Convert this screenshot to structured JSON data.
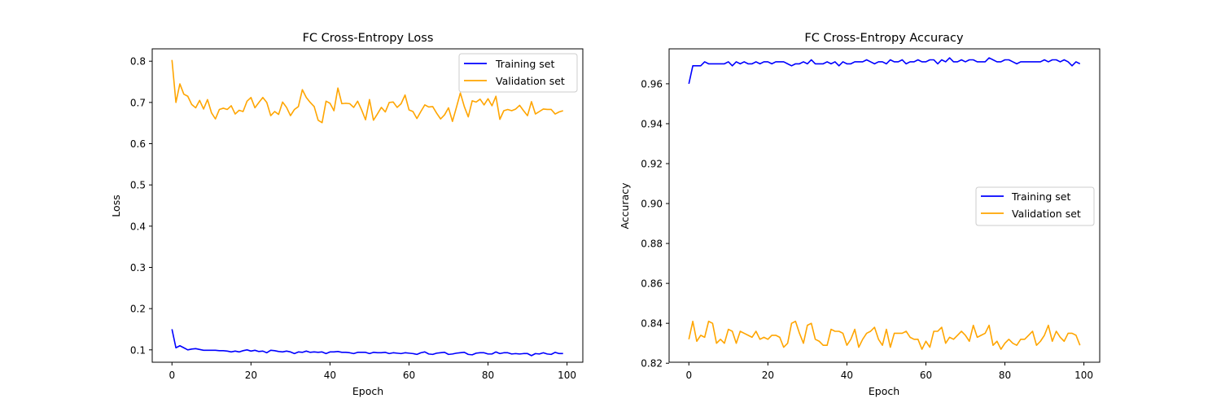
{
  "chart_data": [
    {
      "type": "line",
      "title": "FC Cross-Entropy Loss",
      "xlabel": "Epoch",
      "ylabel": "Loss",
      "xlim": [
        -5,
        104
      ],
      "ylim": [
        0.07,
        0.83
      ],
      "xticks": [
        0,
        20,
        40,
        60,
        80,
        100
      ],
      "yticks": [
        0.1,
        0.2,
        0.3,
        0.4,
        0.5,
        0.6,
        0.7,
        0.8
      ],
      "xtick_labels": [
        "0",
        "20",
        "40",
        "60",
        "80",
        "100"
      ],
      "ytick_labels": [
        "0.1",
        "0.2",
        "0.3",
        "0.4",
        "0.5",
        "0.6",
        "0.7",
        "0.8"
      ],
      "grid": false,
      "legend": "upper-right",
      "series": [
        {
          "name": "Training set",
          "color": "#0000ff",
          "values": [
            0.15,
            0.105,
            0.11,
            0.105,
            0.1,
            0.102,
            0.103,
            0.101,
            0.099,
            0.099,
            0.099,
            0.099,
            0.098,
            0.098,
            0.097,
            0.095,
            0.097,
            0.095,
            0.098,
            0.1,
            0.097,
            0.099,
            0.096,
            0.097,
            0.093,
            0.099,
            0.098,
            0.096,
            0.095,
            0.097,
            0.095,
            0.091,
            0.095,
            0.094,
            0.097,
            0.094,
            0.095,
            0.094,
            0.095,
            0.091,
            0.095,
            0.095,
            0.096,
            0.094,
            0.094,
            0.093,
            0.091,
            0.094,
            0.094,
            0.094,
            0.091,
            0.094,
            0.093,
            0.093,
            0.094,
            0.091,
            0.093,
            0.092,
            0.091,
            0.093,
            0.092,
            0.091,
            0.089,
            0.093,
            0.095,
            0.09,
            0.089,
            0.092,
            0.093,
            0.094,
            0.089,
            0.09,
            0.092,
            0.093,
            0.094,
            0.089,
            0.088,
            0.092,
            0.093,
            0.093,
            0.09,
            0.09,
            0.095,
            0.091,
            0.093,
            0.093,
            0.09,
            0.091,
            0.09,
            0.091,
            0.091,
            0.086,
            0.091,
            0.09,
            0.093,
            0.09,
            0.089,
            0.094,
            0.091,
            0.091
          ]
        },
        {
          "name": "Validation set",
          "color": "#ffa500",
          "values": [
            0.803,
            0.7,
            0.745,
            0.72,
            0.715,
            0.695,
            0.687,
            0.705,
            0.684,
            0.707,
            0.675,
            0.66,
            0.683,
            0.686,
            0.683,
            0.692,
            0.672,
            0.681,
            0.678,
            0.703,
            0.712,
            0.687,
            0.7,
            0.712,
            0.7,
            0.668,
            0.678,
            0.671,
            0.701,
            0.688,
            0.668,
            0.683,
            0.69,
            0.731,
            0.712,
            0.7,
            0.69,
            0.657,
            0.651,
            0.703,
            0.698,
            0.68,
            0.735,
            0.697,
            0.698,
            0.697,
            0.688,
            0.703,
            0.682,
            0.658,
            0.707,
            0.657,
            0.672,
            0.688,
            0.677,
            0.7,
            0.701,
            0.688,
            0.697,
            0.718,
            0.682,
            0.678,
            0.661,
            0.678,
            0.694,
            0.689,
            0.69,
            0.674,
            0.66,
            0.67,
            0.687,
            0.654,
            0.688,
            0.723,
            0.69,
            0.665,
            0.704,
            0.701,
            0.708,
            0.694,
            0.709,
            0.692,
            0.715,
            0.659,
            0.68,
            0.683,
            0.68,
            0.684,
            0.693,
            0.68,
            0.668,
            0.702,
            0.672,
            0.678,
            0.684,
            0.683,
            0.683,
            0.672,
            0.677,
            0.68
          ]
        }
      ]
    },
    {
      "type": "line",
      "title": "FC Cross-Entropy Accuracy",
      "xlabel": "Epoch",
      "ylabel": "Accuracy",
      "xlim": [
        -5,
        104
      ],
      "ylim": [
        0.8205,
        0.9775
      ],
      "xticks": [
        0,
        20,
        40,
        60,
        80,
        100
      ],
      "yticks": [
        0.82,
        0.84,
        0.86,
        0.88,
        0.9,
        0.92,
        0.94,
        0.96
      ],
      "xtick_labels": [
        "0",
        "20",
        "40",
        "60",
        "80",
        "100"
      ],
      "ytick_labels": [
        "0.82",
        "0.84",
        "0.86",
        "0.88",
        "0.90",
        "0.92",
        "0.94",
        "0.96"
      ],
      "grid": false,
      "legend": "center-right",
      "series": [
        {
          "name": "Training set",
          "color": "#0000ff",
          "values": [
            0.96,
            0.969,
            0.969,
            0.969,
            0.971,
            0.97,
            0.97,
            0.97,
            0.97,
            0.97,
            0.971,
            0.969,
            0.971,
            0.97,
            0.971,
            0.97,
            0.97,
            0.971,
            0.97,
            0.971,
            0.971,
            0.97,
            0.971,
            0.971,
            0.971,
            0.97,
            0.969,
            0.97,
            0.97,
            0.971,
            0.97,
            0.972,
            0.97,
            0.97,
            0.97,
            0.971,
            0.97,
            0.971,
            0.969,
            0.971,
            0.97,
            0.97,
            0.971,
            0.971,
            0.971,
            0.972,
            0.971,
            0.97,
            0.971,
            0.971,
            0.97,
            0.972,
            0.971,
            0.971,
            0.972,
            0.97,
            0.971,
            0.971,
            0.972,
            0.971,
            0.971,
            0.972,
            0.972,
            0.97,
            0.972,
            0.971,
            0.973,
            0.971,
            0.971,
            0.972,
            0.971,
            0.972,
            0.972,
            0.971,
            0.971,
            0.971,
            0.973,
            0.972,
            0.971,
            0.971,
            0.972,
            0.972,
            0.971,
            0.97,
            0.971,
            0.971,
            0.971,
            0.971,
            0.971,
            0.971,
            0.972,
            0.971,
            0.972,
            0.972,
            0.971,
            0.972,
            0.971,
            0.969,
            0.971,
            0.97
          ]
        },
        {
          "name": "Validation set",
          "color": "#ffa500",
          "values": [
            0.832,
            0.841,
            0.831,
            0.834,
            0.833,
            0.841,
            0.84,
            0.83,
            0.832,
            0.83,
            0.837,
            0.836,
            0.83,
            0.836,
            0.835,
            0.834,
            0.833,
            0.836,
            0.832,
            0.833,
            0.832,
            0.834,
            0.834,
            0.833,
            0.828,
            0.83,
            0.84,
            0.841,
            0.835,
            0.83,
            0.839,
            0.84,
            0.832,
            0.831,
            0.829,
            0.829,
            0.837,
            0.836,
            0.836,
            0.835,
            0.829,
            0.832,
            0.837,
            0.828,
            0.832,
            0.835,
            0.836,
            0.838,
            0.832,
            0.829,
            0.837,
            0.828,
            0.835,
            0.835,
            0.835,
            0.836,
            0.833,
            0.832,
            0.832,
            0.827,
            0.831,
            0.828,
            0.836,
            0.836,
            0.838,
            0.83,
            0.833,
            0.832,
            0.834,
            0.836,
            0.834,
            0.831,
            0.839,
            0.833,
            0.834,
            0.835,
            0.839,
            0.829,
            0.831,
            0.827,
            0.83,
            0.832,
            0.83,
            0.829,
            0.832,
            0.832,
            0.834,
            0.836,
            0.829,
            0.831,
            0.834,
            0.839,
            0.831,
            0.836,
            0.833,
            0.831,
            0.835,
            0.835,
            0.834,
            0.829
          ]
        }
      ]
    }
  ]
}
